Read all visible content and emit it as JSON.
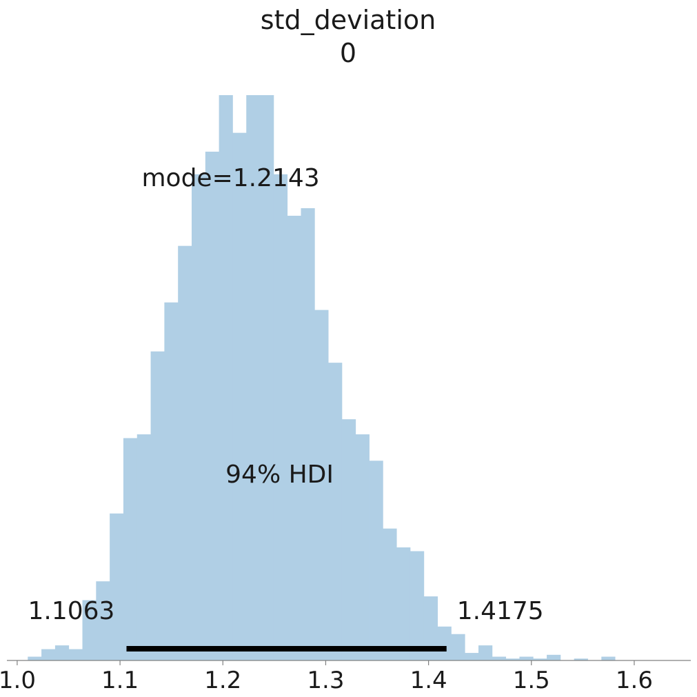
{
  "chart_data": {
    "type": "bar",
    "title": "std_deviation",
    "subtitle": "0",
    "xlabel": "",
    "ylabel": "",
    "xlim": [
      0.99,
      1.655
    ],
    "xticks": [
      "1.0",
      "1.1",
      "1.2",
      "1.3",
      "1.4",
      "1.5",
      "1.6"
    ],
    "bin_start": 1.0103,
    "bin_width": 0.01328,
    "counts": [
      1,
      3,
      4,
      3,
      16,
      21,
      39,
      59,
      60,
      82,
      95,
      110,
      129,
      135,
      150,
      140,
      150,
      150,
      129,
      118,
      120,
      93,
      79,
      64,
      60,
      53,
      35,
      30,
      29,
      17,
      9,
      7,
      2,
      4,
      1,
      0.5,
      1,
      0.5,
      1.5,
      0,
      0.5,
      0,
      1
    ],
    "bar_color": "#b0cfe5",
    "mode_label": "mode=1.2143",
    "hdi": {
      "label": "94% HDI",
      "low": 1.1063,
      "high": 1.4175,
      "low_label": "1.1063",
      "high_label": "1.4175"
    }
  }
}
